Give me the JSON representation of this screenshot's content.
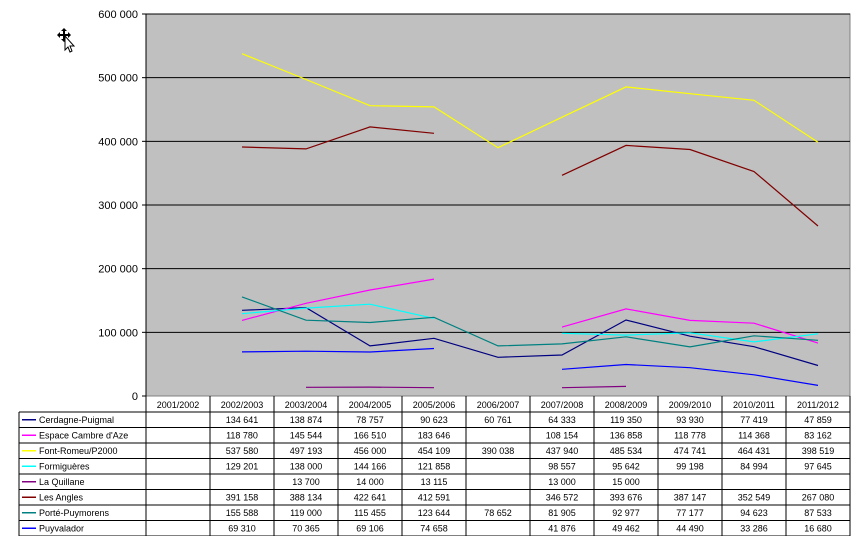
{
  "chart_data": {
    "type": "line",
    "title": "",
    "xlabel": "",
    "ylabel": "",
    "ylim": [
      0,
      600000
    ],
    "yticks": [
      0,
      100000,
      200000,
      300000,
      400000,
      500000,
      600000
    ],
    "ytick_labels": [
      "0",
      "100 000",
      "200 000",
      "300 000",
      "400 000",
      "500 000",
      "600 000"
    ],
    "grid": true,
    "legend": "data-table-below",
    "plot_background": "#c0c0c0",
    "categories": [
      "2001/2002",
      "2002/2003",
      "2003/2004",
      "2004/2005",
      "2005/2006",
      "2006/2007",
      "2007/2008",
      "2008/2009",
      "2009/2010",
      "2010/2011",
      "2011/2012"
    ],
    "series": [
      {
        "name": "Cerdagne-Puigmal",
        "color": "#000080",
        "values": [
          null,
          134641,
          138874,
          78757,
          90623,
          60761,
          64333,
          119350,
          93930,
          77419,
          47859
        ],
        "labels": [
          "",
          "134 641",
          "138 874",
          "78 757",
          "90 623",
          "60 761",
          "64 333",
          "119 350",
          "93 930",
          "77 419",
          "47 859"
        ]
      },
      {
        "name": "Espace Cambre d'Aze",
        "color": "#ff00ff",
        "values": [
          null,
          118780,
          145544,
          166510,
          183646,
          null,
          108154,
          136858,
          118778,
          114368,
          83162
        ],
        "labels": [
          "",
          "118 780",
          "145 544",
          "166 510",
          "183 646",
          "",
          "108 154",
          "136 858",
          "118 778",
          "114 368",
          "83 162"
        ]
      },
      {
        "name": "Font-Romeu/P2000",
        "color": "#ffff00",
        "values": [
          null,
          537580,
          497193,
          456000,
          454109,
          390038,
          437940,
          485534,
          474741,
          464431,
          398519
        ],
        "labels": [
          "",
          "537 580",
          "497 193",
          "456 000",
          "454 109",
          "390 038",
          "437 940",
          "485 534",
          "474 741",
          "464 431",
          "398 519"
        ]
      },
      {
        "name": "Formiguères",
        "color": "#00ffff",
        "values": [
          null,
          129201,
          138000,
          144166,
          121858,
          null,
          98557,
          95642,
          99198,
          84994,
          97645
        ],
        "labels": [
          "",
          "129 201",
          "138 000",
          "144 166",
          "121 858",
          "",
          "98 557",
          "95 642",
          "99 198",
          "84 994",
          "97 645"
        ]
      },
      {
        "name": "La Quillane",
        "color": "#800080",
        "values": [
          null,
          null,
          13700,
          14000,
          13115,
          null,
          13000,
          15000,
          null,
          null,
          null
        ],
        "labels": [
          "",
          "",
          "13 700",
          "14 000",
          "13 115",
          "",
          "13 000",
          "15 000",
          "",
          "",
          ""
        ]
      },
      {
        "name": "Les Angles",
        "color": "#800000",
        "values": [
          null,
          391158,
          388134,
          422641,
          412591,
          null,
          346572,
          393676,
          387147,
          352549,
          267080
        ],
        "labels": [
          "",
          "391 158",
          "388 134",
          "422 641",
          "412 591",
          "",
          "346 572",
          "393 676",
          "387 147",
          "352 549",
          "267 080"
        ]
      },
      {
        "name": "Porté-Puymorens",
        "color": "#008080",
        "values": [
          null,
          155588,
          119000,
          115455,
          123644,
          78652,
          81905,
          92977,
          77177,
          94623,
          87533
        ],
        "labels": [
          "",
          "155 588",
          "119 000",
          "115 455",
          "123 644",
          "78 652",
          "81 905",
          "92 977",
          "77 177",
          "94 623",
          "87 533"
        ]
      },
      {
        "name": "Puyvalador",
        "color": "#0000ff",
        "values": [
          null,
          69310,
          70365,
          69106,
          74658,
          null,
          41876,
          49462,
          44490,
          33286,
          16680
        ],
        "labels": [
          "",
          "69 310",
          "70 365",
          "69 106",
          "74 658",
          "",
          "41 876",
          "49 462",
          "44 490",
          "33 286",
          "16 680"
        ]
      }
    ]
  }
}
